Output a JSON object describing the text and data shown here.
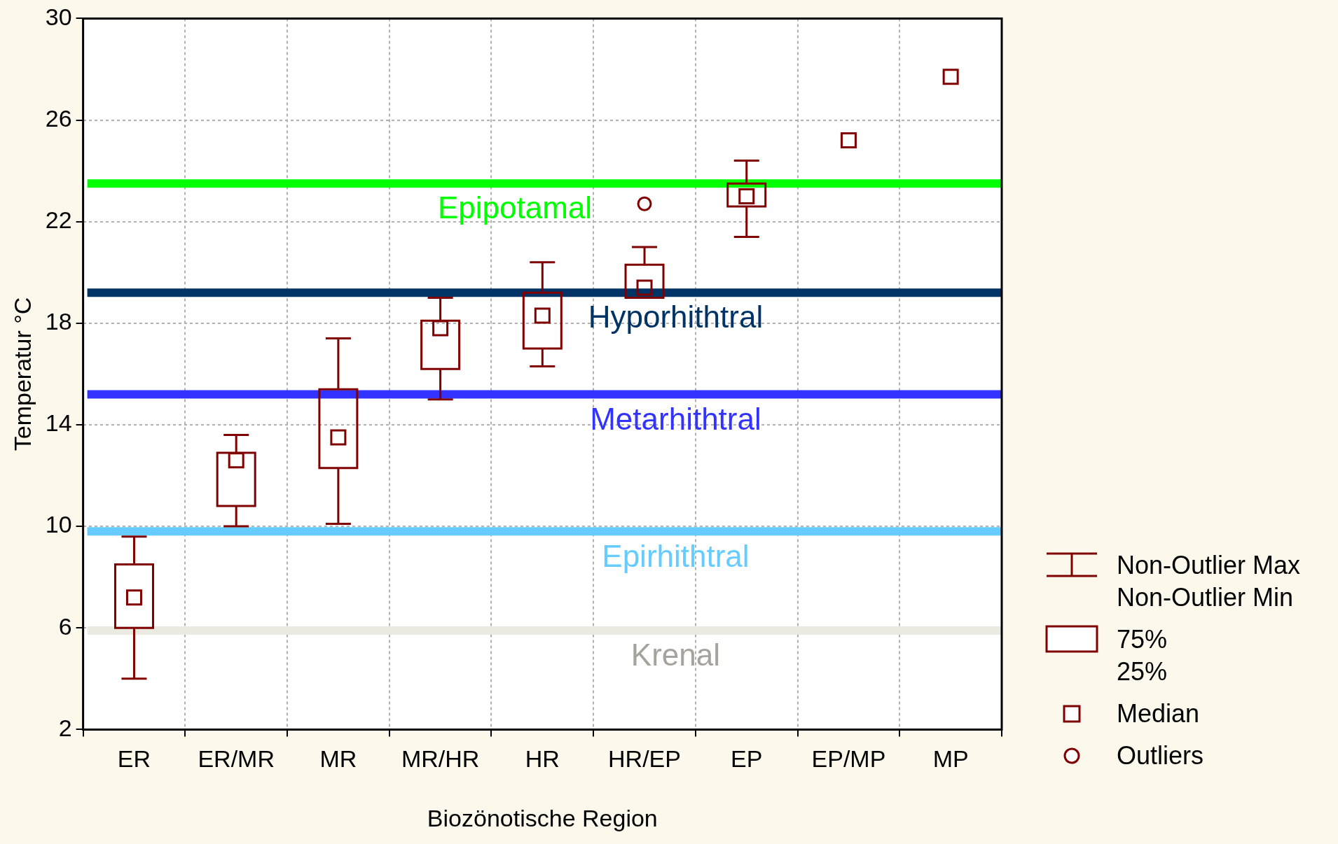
{
  "chart_data": {
    "type": "box",
    "xlabel": "Biozönotische Region",
    "ylabel": "Temperatur °C",
    "categories": [
      "ER",
      "ER/MR",
      "MR",
      "MR/HR",
      "HR",
      "HR/EP",
      "EP",
      "EP/MP",
      "MP"
    ],
    "color": "#800000",
    "boxes": [
      {
        "low": 4.0,
        "q1": 6.0,
        "median": 7.2,
        "q3": 8.5,
        "high": 9.6
      },
      {
        "low": 10.0,
        "q1": 10.8,
        "median": 12.6,
        "q3": 12.9,
        "high": 13.6
      },
      {
        "low": 10.1,
        "q1": 12.3,
        "median": 13.5,
        "q3": 15.4,
        "high": 17.4
      },
      {
        "low": 15.0,
        "q1": 16.2,
        "median": 17.8,
        "q3": 18.1,
        "high": 19.0
      },
      {
        "low": 16.3,
        "q1": 17.0,
        "median": 18.3,
        "q3": 19.2,
        "high": 20.4
      },
      {
        "low": 19.0,
        "q1": 19.0,
        "median": 19.4,
        "q3": 20.3,
        "high": 21.0,
        "outliers": [
          22.7
        ]
      },
      {
        "low": 21.4,
        "q1": 22.6,
        "median": 23.0,
        "q3": 23.5,
        "high": 24.4
      },
      null,
      null
    ],
    "series": [
      {
        "type": "scatter",
        "marker": "square",
        "color": "#800000",
        "x": [
          "EP/MP",
          "MP"
        ],
        "values": [
          25.2,
          27.7
        ]
      }
    ],
    "ylim": [
      2,
      30
    ],
    "yticks": [
      2,
      6,
      10,
      14,
      18,
      22,
      26,
      30
    ],
    "grid": true,
    "ref_lines": [
      {
        "axis": "y",
        "value": 23.5,
        "label": "Epipotamal",
        "color": "#00ff00"
      },
      {
        "axis": "y",
        "value": 19.2,
        "label": "Hyporhithtral",
        "color": "#003366"
      },
      {
        "axis": "y",
        "value": 15.2,
        "label": "Metarhithtral",
        "color": "#3333ff"
      },
      {
        "axis": "y",
        "value": 9.8,
        "label": "Epirhithtral",
        "color": "#66ccff"
      },
      {
        "axis": "y",
        "value": 5.9,
        "label": "Krenal",
        "color": "#eaeae0"
      }
    ],
    "annotations": [
      "Non-Outlier Max",
      "Non-Outlier Min",
      "75%",
      "25%",
      "Median",
      "Outliers"
    ]
  }
}
